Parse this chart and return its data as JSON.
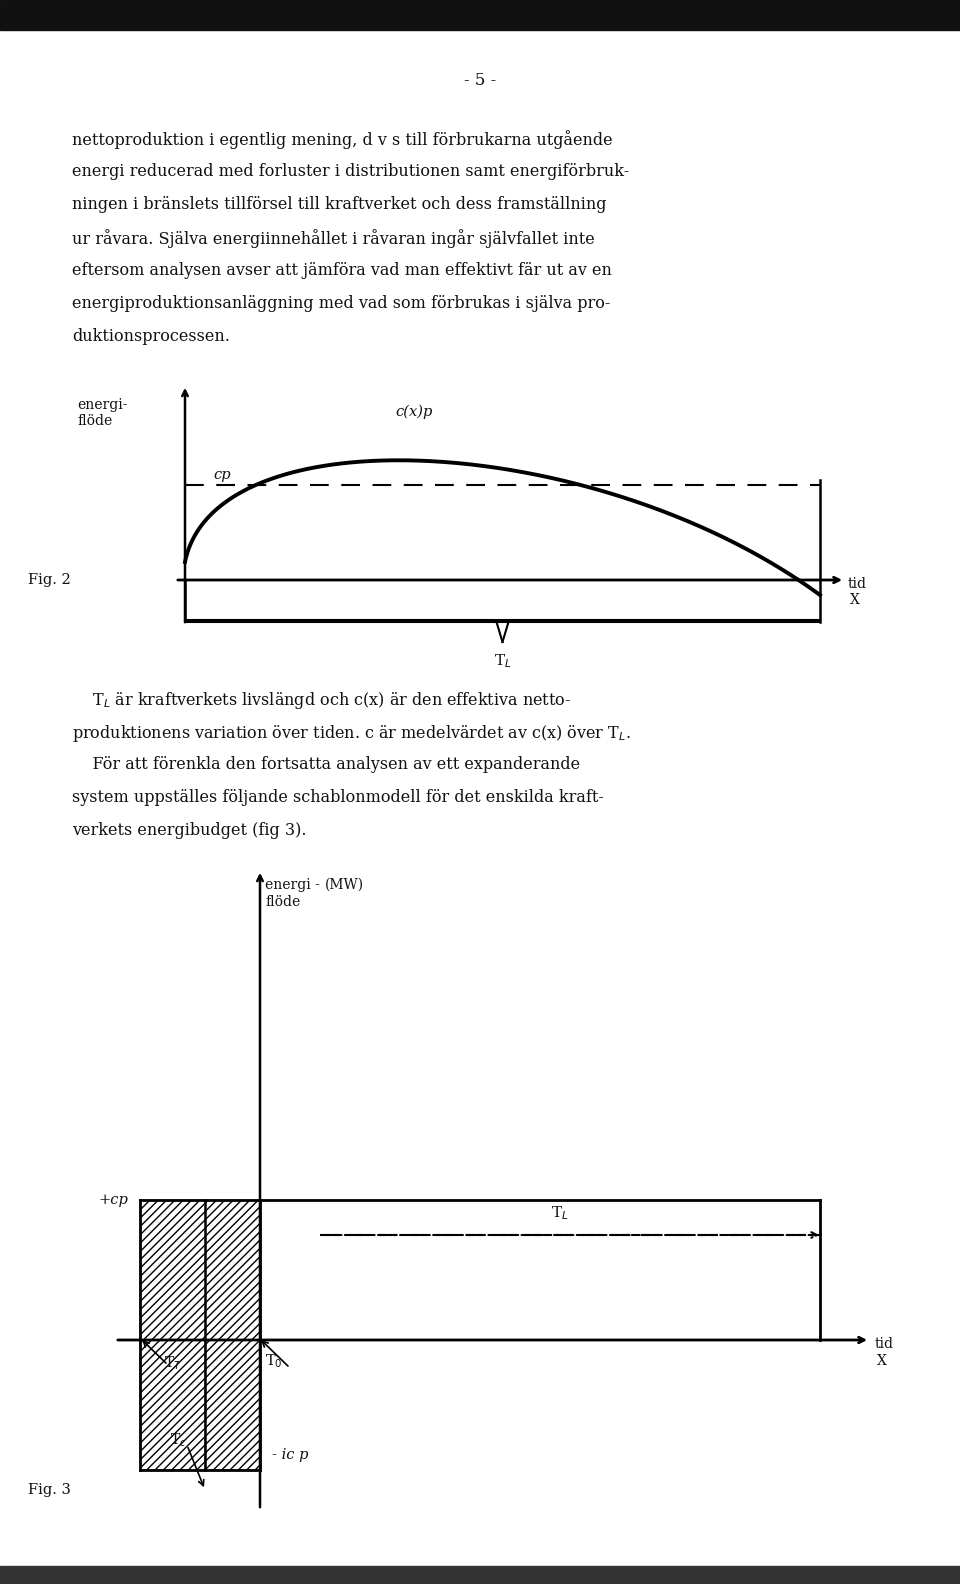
{
  "page_number": "- 5 -",
  "paragraph1": "nettoproduktion i egentlig mening, d v s till förbrukarna utgående",
  "paragraph2": "energi reducerad med forluster i distributionen samt energiförbruk-",
  "paragraph3": "ningen i bränslets tillförsel till kraftverket och dess framställning",
  "paragraph4": "ur råvara. Själva energiinnehållet i råvaran ingår självfallet inte",
  "paragraph5": "eftersom analysen avser att jämföra vad man effektivt fär ut av en",
  "paragraph6": "energiproduktionsanläggning med vad som förbrukas i själva pro-",
  "paragraph7": "duktionsprocessen.",
  "cap1": "    T",
  "cap1b": "L",
  "cap1c": " är kraftverkets livslängd och c(x) är den effektiva netto-",
  "cap2": "produktionens variation över tiden. c är medelvärdet av c(x) över T",
  "cap2b": "L",
  "cap2c": ".",
  "cap3": "    För att förenkla den fortsätta analysen av ett expanderande",
  "cap4": "system uppställes följande schablonmodell för det enskilda kraft-",
  "cap5": "verkets energibudget (fig 3).",
  "bg_color": "#ffffff",
  "text_color": "#111111",
  "fig2_ylabel": "energi-\nflöde",
  "fig2_cp": "cp",
  "fig2_cxp": "c(x)p",
  "fig2_TL": "T$_L$",
  "fig2_tid": "tid",
  "fig2_X": "X",
  "fig2_label": "Fig. 2",
  "fig3_ylabel1": "energi -",
  "fig3_ylabel2": "flöde",
  "fig3_ylabel3": "(MW)",
  "fig3_cp": "+cp",
  "fig3_TL": "T$_L$",
  "fig3_TT": "T$_T$",
  "fig3_Tc": "T$_c$",
  "fig3_T0": "T$_0$",
  "fig3_icp": "- ic p",
  "fig3_tid": "tid",
  "fig3_X": "X",
  "fig3_label": "Fig. 3"
}
